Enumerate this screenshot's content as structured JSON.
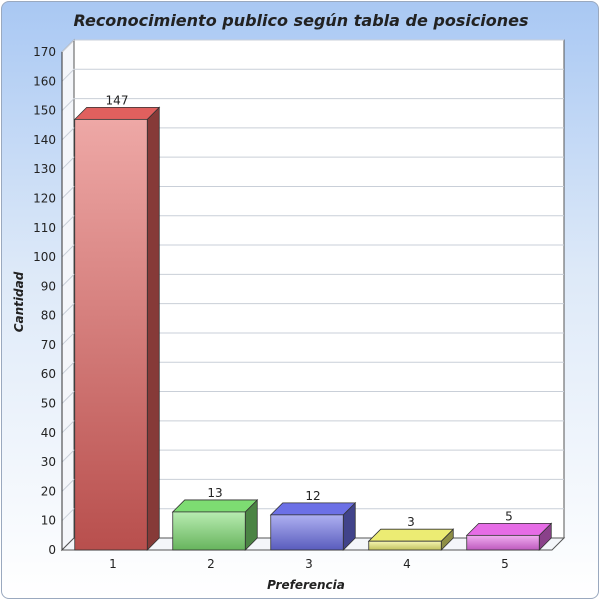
{
  "chart_data": {
    "type": "bar",
    "title": "Reconocimiento publico según tabla de posiciones",
    "xlabel": "Preferencia",
    "ylabel": "Cantidad",
    "categories": [
      "1",
      "2",
      "3",
      "4",
      "5"
    ],
    "values": [
      147,
      13,
      12,
      3,
      5
    ],
    "data_labels": [
      "147",
      "13",
      "12",
      "3",
      "5"
    ],
    "ylim": [
      0,
      170
    ],
    "yticks": [
      0,
      10,
      20,
      30,
      40,
      50,
      60,
      70,
      80,
      90,
      100,
      110,
      120,
      130,
      140,
      150,
      160,
      170
    ],
    "grid": true,
    "legend": "none",
    "three_d": true,
    "colors": [
      "#e0605e",
      "#7ddc72",
      "#6c70e6",
      "#ecec73",
      "#e66ce6"
    ]
  }
}
